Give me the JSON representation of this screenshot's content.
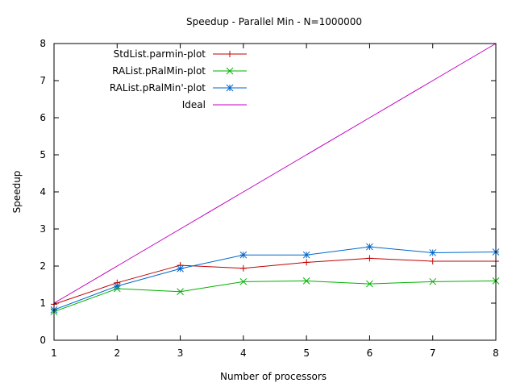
{
  "chart_data": {
    "type": "line",
    "title": "Speedup - Parallel Min - N=1000000",
    "xlabel": "Number of processors",
    "ylabel": "Speedup",
    "xlim": [
      1,
      8
    ],
    "ylim": [
      0,
      8
    ],
    "xticks": [
      1,
      2,
      3,
      4,
      5,
      6,
      7,
      8
    ],
    "yticks": [
      0,
      1,
      2,
      3,
      4,
      5,
      6,
      7,
      8
    ],
    "grid": false,
    "legend_position": "top-left",
    "x": [
      1,
      2,
      3,
      4,
      5,
      6,
      7,
      8
    ],
    "series": [
      {
        "name": "StdList.parmin-plot",
        "color": "#c00000",
        "marker": "plus",
        "values": [
          0.97,
          1.55,
          2.02,
          1.94,
          2.1,
          2.21,
          2.13,
          2.13
        ]
      },
      {
        "name": "RAList.pRalMin-plot",
        "color": "#00b000",
        "marker": "cross",
        "values": [
          0.77,
          1.39,
          1.31,
          1.58,
          1.6,
          1.52,
          1.58,
          1.6
        ]
      },
      {
        "name": "RAList.pRalMin'-plot",
        "color": "#0066cc",
        "marker": "star",
        "values": [
          0.82,
          1.46,
          1.93,
          2.3,
          2.3,
          2.52,
          2.36,
          2.38
        ]
      },
      {
        "name": "Ideal",
        "color": "#c000c0",
        "marker": "none",
        "values": [
          1,
          2,
          3,
          4,
          5,
          6,
          7,
          8
        ]
      }
    ]
  }
}
